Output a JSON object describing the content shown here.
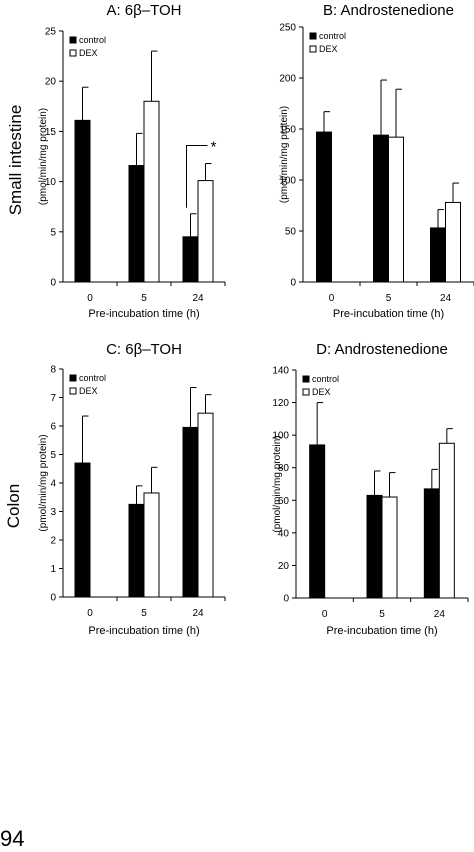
{
  "row_labels": {
    "top": "Small intestine",
    "bottom": "Colon"
  },
  "page_number": "94",
  "chart_data": [
    {
      "type": "bar",
      "title": "A: 6β–TOH",
      "xlabel": "Pre-incubation time (h)",
      "ylabel": "(pmol/min/mg protein)",
      "categories": [
        "0",
        "5",
        "24"
      ],
      "ylim": [
        0,
        25
      ],
      "yticks": [
        0,
        5,
        10,
        15,
        20,
        25
      ],
      "legend": "top-left",
      "series": [
        {
          "name": "control",
          "color": "#000000",
          "values": [
            16.1,
            11.6,
            4.5
          ],
          "errors": [
            3.3,
            3.2,
            2.3
          ]
        },
        {
          "name": "DEX",
          "color": "#ffffff",
          "values": [
            null,
            18.0,
            10.1
          ],
          "errors": [
            null,
            5.0,
            1.7
          ]
        }
      ],
      "annotation": {
        "text": "*",
        "between": [
          "control",
          "DEX"
        ],
        "category": "24"
      }
    },
    {
      "type": "bar",
      "title": "B: Androstenedione",
      "xlabel": "Pre-incubation time (h)",
      "ylabel": "(pmol/min/mg protein)",
      "categories": [
        "0",
        "5",
        "24"
      ],
      "ylim": [
        0,
        250
      ],
      "yticks": [
        0,
        50,
        100,
        150,
        200,
        250
      ],
      "legend": "top-left",
      "series": [
        {
          "name": "control",
          "color": "#000000",
          "values": [
            147,
            144,
            53
          ],
          "errors": [
            20,
            54,
            18
          ]
        },
        {
          "name": "DEX",
          "color": "#ffffff",
          "values": [
            null,
            142,
            78
          ],
          "errors": [
            null,
            47,
            19
          ]
        }
      ]
    },
    {
      "type": "bar",
      "title": "C: 6β–TOH",
      "xlabel": "Pre-incubation time (h)",
      "ylabel": "(pmol/min/mg protein)",
      "categories": [
        "0",
        "5",
        "24"
      ],
      "ylim": [
        0,
        8
      ],
      "yticks": [
        0,
        1,
        2,
        3,
        4,
        5,
        6,
        7,
        8
      ],
      "legend": "top-left",
      "series": [
        {
          "name": "control",
          "color": "#000000",
          "values": [
            4.7,
            3.25,
            5.95
          ],
          "errors": [
            1.65,
            0.65,
            1.4
          ]
        },
        {
          "name": "DEX",
          "color": "#ffffff",
          "values": [
            null,
            3.65,
            6.45
          ],
          "errors": [
            null,
            0.9,
            0.65
          ]
        }
      ]
    },
    {
      "type": "bar",
      "title": "D: Androstenedione",
      "xlabel": "Pre-incubation time (h)",
      "ylabel": "(pmol/min/mg protein)",
      "categories": [
        "0",
        "5",
        "24"
      ],
      "ylim": [
        0,
        140
      ],
      "yticks": [
        0,
        20,
        40,
        60,
        80,
        100,
        120,
        140
      ],
      "legend": "top-left",
      "series": [
        {
          "name": "control",
          "color": "#000000",
          "values": [
            94,
            63,
            67
          ],
          "errors": [
            26,
            15,
            12
          ]
        },
        {
          "name": "DEX",
          "color": "#ffffff",
          "values": [
            null,
            62,
            95
          ],
          "errors": [
            null,
            15,
            9
          ]
        }
      ]
    }
  ]
}
